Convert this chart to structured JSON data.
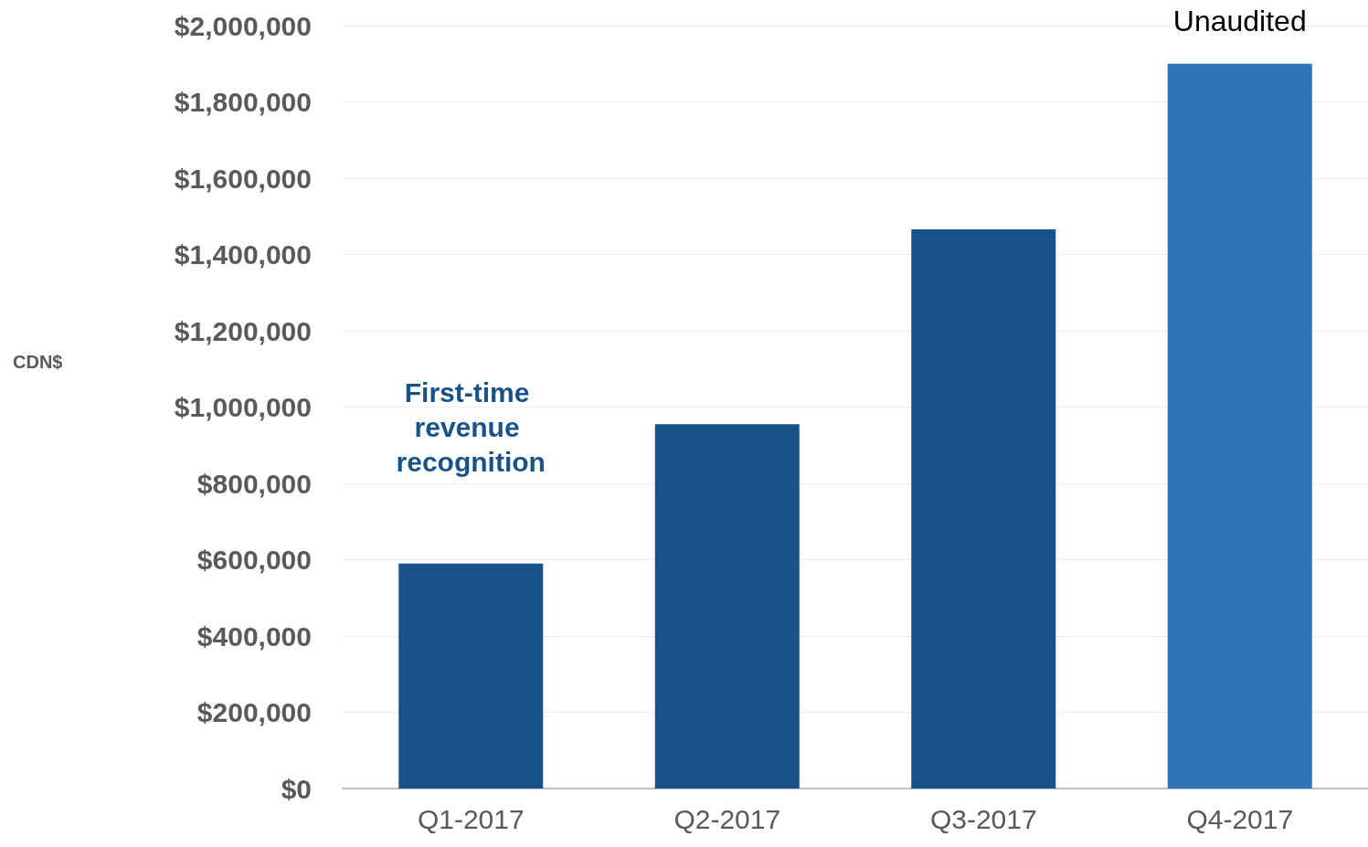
{
  "chart_data": {
    "type": "bar",
    "categories": [
      "Q1-2017",
      "Q2-2017",
      "Q3-2017",
      "Q4-2017"
    ],
    "values": [
      590000,
      955000,
      1466000,
      1900000
    ],
    "colors": [
      "#175289",
      "#175289",
      "#175289",
      "#2e75b6"
    ],
    "ylim": [
      0,
      2000000
    ],
    "yticks": [
      {
        "value": 0,
        "label": "$0"
      },
      {
        "value": 200000,
        "label": "$200,000"
      },
      {
        "value": 400000,
        "label": "$400,000"
      },
      {
        "value": 600000,
        "label": "$600,000"
      },
      {
        "value": 800000,
        "label": "$800,000"
      },
      {
        "value": 1000000,
        "label": "$1,000,000"
      },
      {
        "value": 1200000,
        "label": "$1,200,000"
      },
      {
        "value": 1400000,
        "label": "$1,400,000"
      },
      {
        "value": 1600000,
        "label": "$1,600,000"
      },
      {
        "value": 1800000,
        "label": "$1,800,000"
      },
      {
        "value": 2000000,
        "label": "$2,000,000"
      }
    ],
    "grid": "y",
    "annotations": [
      "CDN$",
      "First-time revenue recognition",
      {
        "text": "Unaudited",
        "x": "Q4-2017",
        "y": 1900000
      }
    ]
  }
}
